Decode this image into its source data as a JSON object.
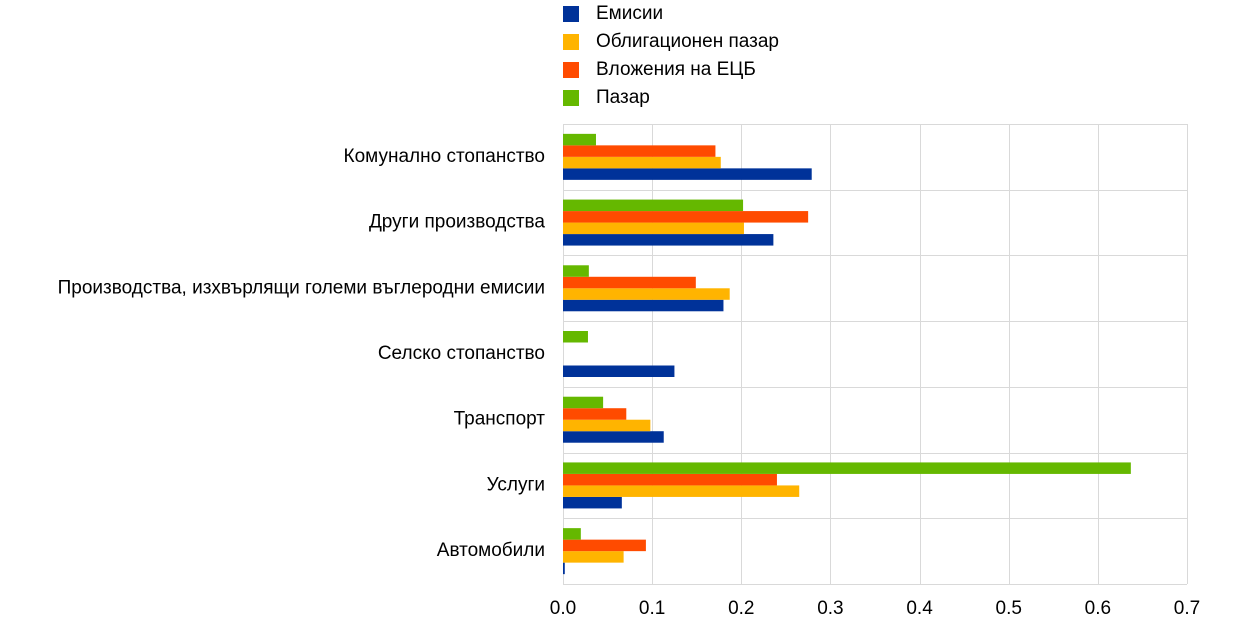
{
  "chart_data": {
    "type": "bar",
    "orientation": "horizontal",
    "title": "",
    "xlabel": "",
    "ylabel": "",
    "xlim": [
      0,
      0.7
    ],
    "x_ticks": [
      "0.0",
      "0.1",
      "0.2",
      "0.3",
      "0.4",
      "0.5",
      "0.6",
      "0.7"
    ],
    "grid": true,
    "legend_position": "top",
    "categories": [
      "Комунално стопанство",
      "Други производства",
      "Производства, изхвърлящи големи въглеродни емисии",
      "Селско стопанство",
      "Транспорт",
      "Услуги",
      "Автомобили"
    ],
    "series": [
      {
        "name": "Емисии",
        "color": "#003299",
        "values": [
          0.279,
          0.236,
          0.18,
          0.125,
          0.113,
          0.066,
          0.002
        ]
      },
      {
        "name": "Облигационен пазар",
        "color": "#ffb400",
        "values": [
          0.177,
          0.203,
          0.187,
          0.0,
          0.098,
          0.265,
          0.068
        ]
      },
      {
        "name": "Вложения на ЕЦБ",
        "color": "#ff4b00",
        "values": [
          0.171,
          0.275,
          0.149,
          0.0,
          0.071,
          0.24,
          0.093
        ]
      },
      {
        "name": "Пазар",
        "color": "#65b800",
        "values": [
          0.037,
          0.202,
          0.029,
          0.028,
          0.045,
          0.637,
          0.02
        ]
      }
    ]
  }
}
